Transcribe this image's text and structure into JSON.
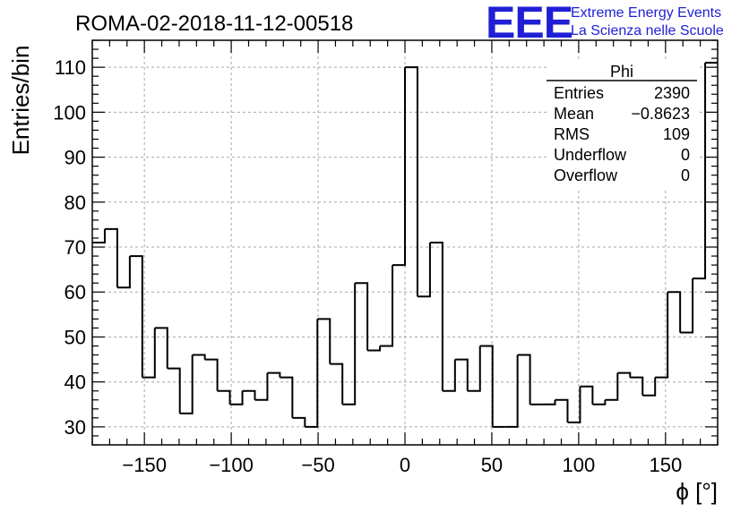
{
  "header": {
    "title": "ROMA-02-2018-11-12-00518"
  },
  "logo": {
    "letters": "EEE",
    "line1": "Extreme Energy Events",
    "line2": "La Scienza nelle Scuole",
    "color": "#1f1fd6"
  },
  "stats_box": {
    "title": "Phi",
    "rows": [
      {
        "label": "Entries",
        "value": "2390"
      },
      {
        "label": "Mean",
        "value": "−0.8623"
      },
      {
        "label": "RMS",
        "value": "109"
      },
      {
        "label": "Underflow",
        "value": "0"
      },
      {
        "label": "Overflow",
        "value": "0"
      }
    ]
  },
  "chart_data": {
    "type": "histogram",
    "title": "ROMA-02-2018-11-12-00518",
    "xlabel": "ϕ [°]",
    "ylabel": "Entries/bin",
    "xlim": [
      -180,
      180
    ],
    "ylim": [
      26,
      116
    ],
    "grid": true,
    "bin_width": 7.2,
    "bin_edges_start": -180,
    "values": [
      71,
      74,
      61,
      68,
      41,
      52,
      43,
      33,
      46,
      45,
      38,
      35,
      38,
      36,
      42,
      41,
      32,
      30,
      54,
      44,
      35,
      62,
      47,
      48,
      66,
      110,
      59,
      71,
      38,
      45,
      38,
      48,
      30,
      30,
      46,
      35,
      35,
      36,
      31,
      39,
      35,
      36,
      42,
      41,
      37,
      41,
      60,
      51,
      63,
      111
    ],
    "x_ticks": [
      {
        "value": -150,
        "label": "−150"
      },
      {
        "value": -100,
        "label": "−100"
      },
      {
        "value": -50,
        "label": "−50"
      },
      {
        "value": 0,
        "label": "0"
      },
      {
        "value": 50,
        "label": "50"
      },
      {
        "value": 100,
        "label": "100"
      },
      {
        "value": 150,
        "label": "150"
      }
    ],
    "y_ticks": [
      {
        "value": 30,
        "label": "30"
      },
      {
        "value": 40,
        "label": "40"
      },
      {
        "value": 50,
        "label": "50"
      },
      {
        "value": 60,
        "label": "60"
      },
      {
        "value": 70,
        "label": "70"
      },
      {
        "value": 80,
        "label": "80"
      },
      {
        "value": 90,
        "label": "90"
      },
      {
        "value": 100,
        "label": "100"
      },
      {
        "value": 110,
        "label": "110"
      }
    ],
    "line_color": "#000000",
    "grid_color": "#a8a8a8"
  }
}
